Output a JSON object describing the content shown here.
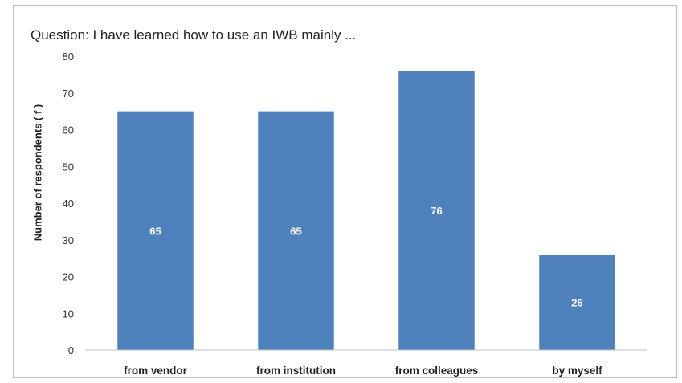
{
  "chart_data": {
    "type": "bar",
    "title": "Question: I have learned how to use an IWB mainly ...",
    "xlabel": "",
    "ylabel": "Number of respondents ( f )",
    "categories": [
      "from vendor",
      "from institution",
      "from colleagues",
      "by myself"
    ],
    "values": [
      65,
      65,
      76,
      26
    ],
    "data_labels": [
      "65",
      "65",
      "76",
      "26"
    ],
    "ylim": [
      0,
      80
    ],
    "yticks": [
      0,
      10,
      20,
      30,
      40,
      50,
      60,
      70,
      80
    ],
    "grid": false,
    "legend": "none",
    "bar_color": "#4f81bd"
  }
}
